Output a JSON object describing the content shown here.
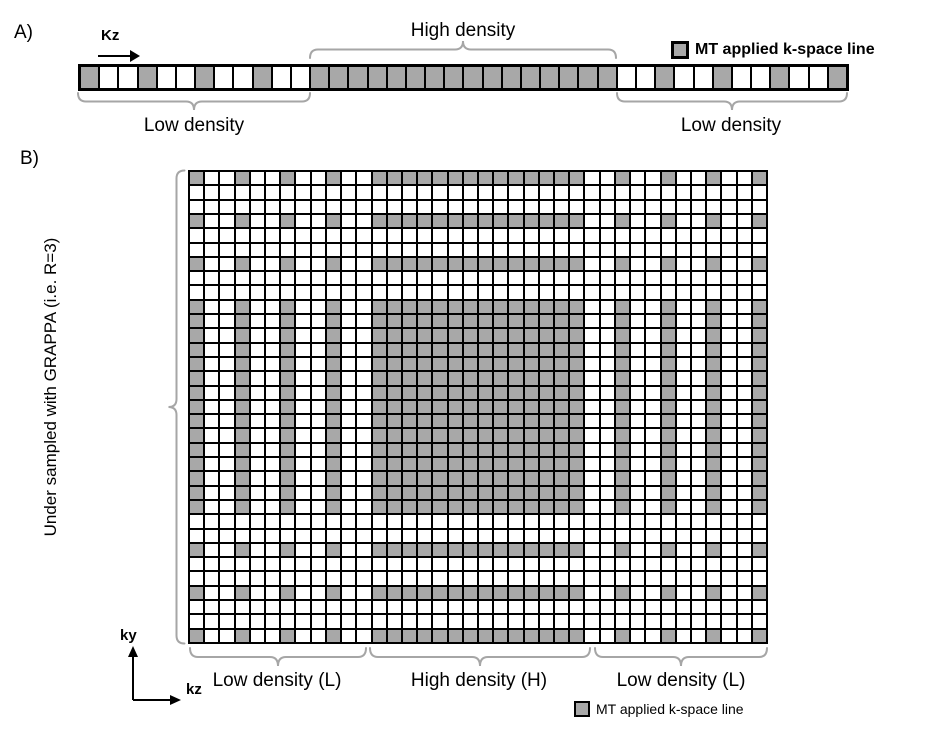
{
  "figure": {
    "colors": {
      "mt_fill": "#a8a8a8",
      "empty_fill": "#ffffff",
      "grid_line": "#000000",
      "brace": "#a6a6a6"
    },
    "panel_a": {
      "label": "A)",
      "kz_axis_label": "Kz",
      "high_density_label": "High density",
      "low_density_left_label": "Low density",
      "low_density_right_label": "Low density",
      "legend_label": "MT applied k-space line",
      "strip": {
        "num_squares": 40,
        "mt_squares": [
          1,
          4,
          7,
          10,
          13,
          14,
          15,
          16,
          17,
          18,
          19,
          20,
          21,
          22,
          23,
          24,
          25,
          26,
          27,
          28,
          31,
          34,
          37,
          40
        ]
      }
    },
    "panel_b": {
      "label": "B)",
      "side_label": "Under sampled with GRAPPA (i.e. R=3)",
      "ky_axis_label": "ky",
      "kz_axis_label": "kz",
      "low_density_left_label": "Low density (L)",
      "high_density_label": "High density (H)",
      "low_density_right_label": "Low density (L)",
      "legend_label": "MT applied k-space line",
      "grid": {
        "rows": 33,
        "cols": 38,
        "sampled_rows": [
          1,
          4,
          7,
          10,
          11,
          12,
          13,
          14,
          15,
          16,
          17,
          18,
          19,
          20,
          21,
          22,
          23,
          24,
          27,
          30,
          33
        ],
        "mt_cols": [
          1,
          4,
          7,
          10,
          13,
          14,
          15,
          16,
          17,
          18,
          19,
          20,
          21,
          22,
          23,
          24,
          25,
          26,
          29,
          32,
          35,
          38
        ]
      }
    }
  }
}
